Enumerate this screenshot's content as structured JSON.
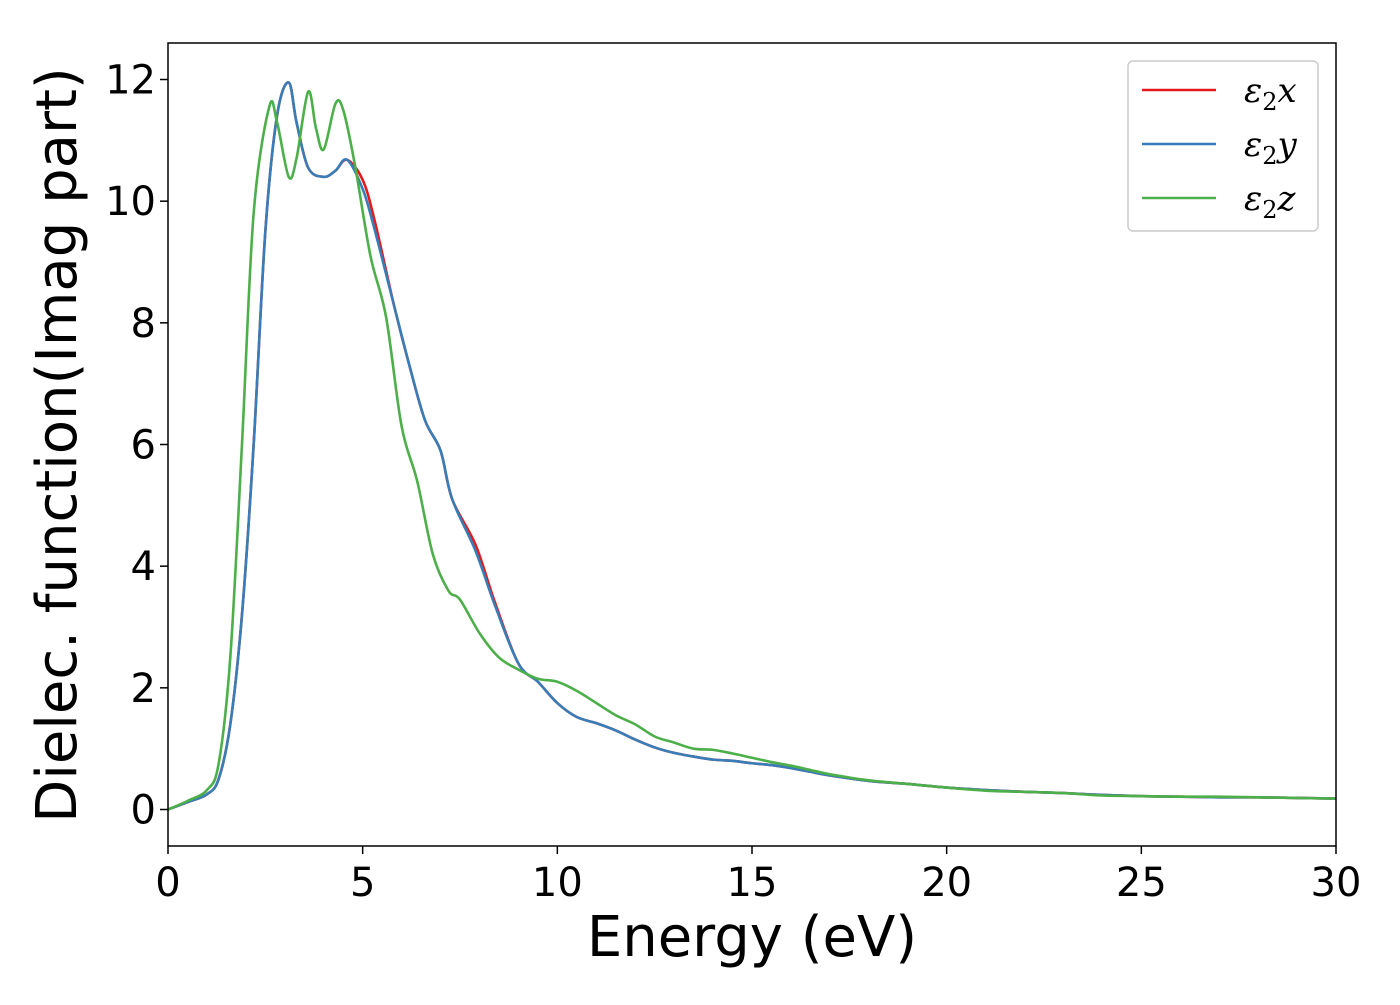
{
  "chart_data": {
    "type": "line",
    "xlabel": "Energy (eV)",
    "ylabel": "Dielec. function(Imag part)",
    "xlim": [
      0,
      30
    ],
    "ylim": [
      -0.6,
      12.6
    ],
    "x_ticks": [
      "0",
      "5",
      "10",
      "15",
      "20",
      "25",
      "30"
    ],
    "y_ticks": [
      "0",
      "2",
      "4",
      "6",
      "8",
      "10",
      "12"
    ],
    "grid": false,
    "legend_position": "top-right",
    "series": [
      {
        "name": "ε₂x",
        "legend_base": "ε",
        "legend_sub": "2",
        "legend_suffix": "x",
        "color": "#e41a1c",
        "x": [
          0,
          0.5,
          1.0,
          1.3,
          1.6,
          1.9,
          2.2,
          2.5,
          2.8,
          3.1,
          3.3,
          3.6,
          4.0,
          4.3,
          4.6,
          5.0,
          5.3,
          5.8,
          6.2,
          6.6,
          7.0,
          7.3,
          7.9,
          8.4,
          9.0,
          9.5,
          10.0,
          10.5,
          11.0,
          11.5,
          12.0,
          12.5,
          13.0,
          13.5,
          14.0,
          14.5,
          15.0,
          15.5,
          16.0,
          16.5,
          17.0,
          18.0,
          19.0,
          20.0,
          21.0,
          22.0,
          23.0,
          24.0,
          25.0,
          26.0,
          27.0,
          28.0,
          29.0,
          30.0
        ],
        "y": [
          0,
          0.12,
          0.25,
          0.5,
          1.4,
          3.2,
          6.0,
          9.5,
          11.4,
          11.95,
          11.3,
          10.55,
          10.4,
          10.5,
          10.68,
          10.35,
          9.7,
          8.3,
          7.3,
          6.4,
          5.9,
          5.1,
          4.35,
          3.4,
          2.4,
          2.1,
          1.75,
          1.52,
          1.42,
          1.3,
          1.15,
          1.02,
          0.93,
          0.87,
          0.82,
          0.8,
          0.76,
          0.73,
          0.68,
          0.62,
          0.56,
          0.47,
          0.42,
          0.36,
          0.32,
          0.29,
          0.27,
          0.24,
          0.22,
          0.21,
          0.2,
          0.2,
          0.19,
          0.18
        ]
      },
      {
        "name": "ε₂y",
        "legend_base": "ε",
        "legend_sub": "2",
        "legend_suffix": "y",
        "color": "#377eb8",
        "x": [
          0,
          0.5,
          1.0,
          1.3,
          1.6,
          1.9,
          2.2,
          2.5,
          2.8,
          3.1,
          3.3,
          3.6,
          4.0,
          4.3,
          4.6,
          5.0,
          5.3,
          5.8,
          6.2,
          6.6,
          7.0,
          7.3,
          7.9,
          8.4,
          9.0,
          9.5,
          10.0,
          10.5,
          11.0,
          11.5,
          12.0,
          12.5,
          13.0,
          13.5,
          14.0,
          14.5,
          15.0,
          15.5,
          16.0,
          16.5,
          17.0,
          18.0,
          19.0,
          20.0,
          21.0,
          22.0,
          23.0,
          24.0,
          25.0,
          26.0,
          27.0,
          28.0,
          29.0,
          30.0
        ],
        "y": [
          0,
          0.12,
          0.25,
          0.5,
          1.4,
          3.2,
          6.0,
          9.5,
          11.4,
          11.95,
          11.3,
          10.55,
          10.4,
          10.5,
          10.68,
          10.2,
          9.55,
          8.3,
          7.3,
          6.4,
          5.9,
          5.1,
          4.25,
          3.35,
          2.4,
          2.1,
          1.75,
          1.52,
          1.42,
          1.3,
          1.15,
          1.02,
          0.93,
          0.87,
          0.82,
          0.8,
          0.76,
          0.73,
          0.68,
          0.62,
          0.56,
          0.47,
          0.42,
          0.36,
          0.32,
          0.29,
          0.27,
          0.24,
          0.22,
          0.21,
          0.2,
          0.2,
          0.19,
          0.18
        ]
      },
      {
        "name": "ε₂z",
        "legend_base": "ε",
        "legend_sub": "2",
        "legend_suffix": "z",
        "color": "#4daf4a",
        "x": [
          0,
          0.5,
          1.0,
          1.3,
          1.6,
          1.9,
          2.2,
          2.6,
          2.8,
          3.1,
          3.3,
          3.6,
          3.8,
          4.0,
          4.3,
          4.5,
          4.8,
          5.2,
          5.6,
          6.0,
          6.4,
          6.8,
          7.2,
          7.5,
          8.0,
          8.5,
          9.0,
          9.5,
          10.0,
          10.5,
          11.0,
          11.5,
          12.0,
          12.5,
          13.0,
          13.5,
          14.0,
          14.5,
          15.0,
          15.5,
          16.0,
          16.5,
          17.0,
          18.0,
          19.0,
          20.0,
          21.0,
          22.0,
          23.0,
          24.0,
          25.0,
          26.0,
          27.0,
          28.0,
          29.0,
          30.0
        ],
        "y": [
          0,
          0.14,
          0.32,
          0.75,
          2.5,
          6.0,
          9.8,
          11.55,
          11.3,
          10.4,
          10.7,
          11.8,
          11.2,
          10.85,
          11.6,
          11.5,
          10.6,
          9.1,
          8.1,
          6.3,
          5.4,
          4.2,
          3.6,
          3.45,
          2.9,
          2.5,
          2.3,
          2.15,
          2.1,
          1.95,
          1.75,
          1.55,
          1.4,
          1.2,
          1.1,
          1.0,
          0.98,
          0.92,
          0.85,
          0.78,
          0.72,
          0.65,
          0.58,
          0.48,
          0.42,
          0.36,
          0.31,
          0.29,
          0.27,
          0.23,
          0.22,
          0.21,
          0.21,
          0.2,
          0.19,
          0.18
        ]
      }
    ]
  }
}
